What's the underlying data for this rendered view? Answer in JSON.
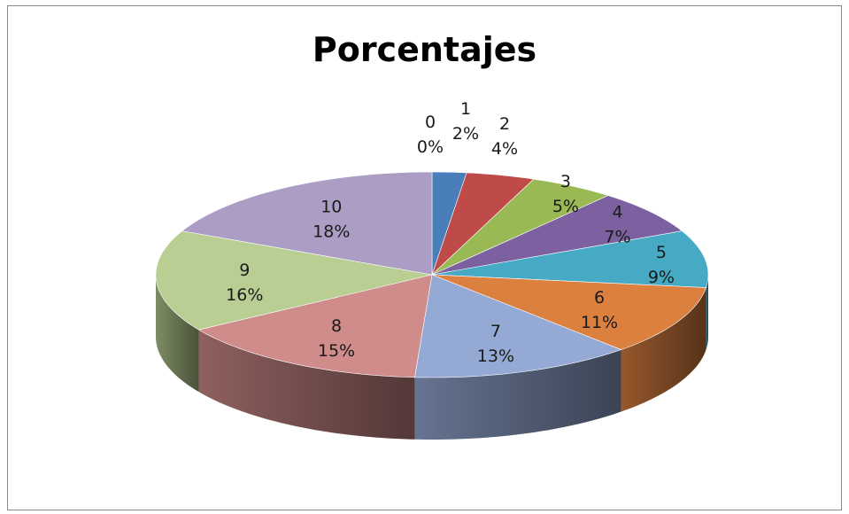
{
  "chart_data": {
    "type": "pie",
    "title": "Porcentajes",
    "categories": [
      "0",
      "1",
      "2",
      "3",
      "4",
      "5",
      "6",
      "7",
      "8",
      "9",
      "10"
    ],
    "values": [
      0,
      2,
      4,
      5,
      7,
      9,
      11,
      13,
      15,
      16,
      18
    ],
    "value_labels": [
      "0%",
      "2%",
      "4%",
      "5%",
      "7%",
      "9%",
      "11%",
      "13%",
      "15%",
      "16%",
      "18%"
    ],
    "colors": [
      "#4f81bd",
      "#c0504d",
      "#9bbb59",
      "#8064a2",
      "#4bacc6",
      "#f79646",
      "#95add6",
      "#d08c8a",
      "#b9cf96",
      "#b0a1c6"
    ],
    "slice_colors": [
      "#4a7ebb",
      "#4a7ebb",
      "#be4b48",
      "#98b954",
      "#7d60a0",
      "#46aac5",
      "#dc8040",
      "#94a9d4",
      "#d08c8b",
      "#b8ce92",
      "#ab9dc4"
    ],
    "legend": "none",
    "style": "3d"
  }
}
